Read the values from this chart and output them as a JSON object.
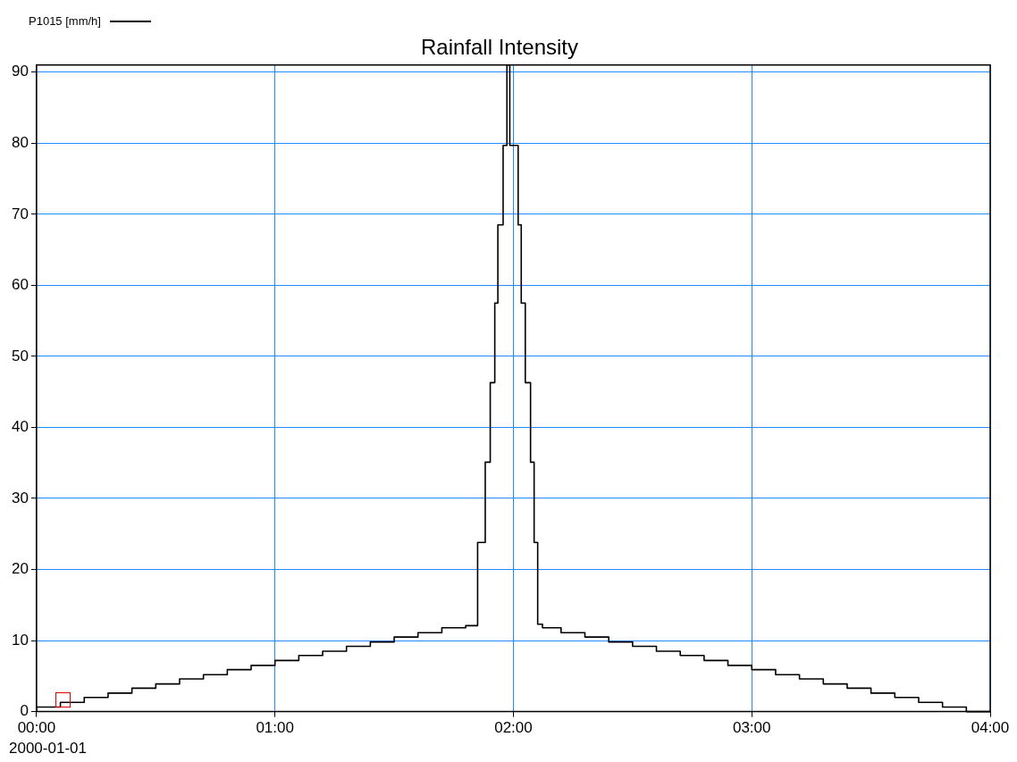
{
  "chart_data": {
    "type": "step",
    "title": "Rainfall Intensity",
    "x": [
      0,
      0.1,
      0.2,
      0.3,
      0.4,
      0.5,
      0.6,
      0.7,
      0.8,
      0.9,
      1.0,
      1.1,
      1.2,
      1.3,
      1.4,
      1.5,
      1.6,
      1.7,
      1.8,
      1.85,
      1.882,
      1.903,
      1.922,
      1.935,
      1.957,
      1.973,
      1.985,
      2.02,
      2.033,
      2.05,
      2.072,
      2.087,
      2.102,
      2.122,
      2.2,
      2.3,
      2.4,
      2.5,
      2.6,
      2.7,
      2.8,
      2.9,
      3.0,
      3.1,
      3.2,
      3.3,
      3.4,
      3.5,
      3.6,
      3.7,
      3.8,
      3.9,
      4.0
    ],
    "series": [
      {
        "name": "P1015 [mm/h]",
        "color": "#000000",
        "values": [
          0,
          0.65,
          1.3,
          2.0,
          2.6,
          3.3,
          3.9,
          4.6,
          5.2,
          5.9,
          6.5,
          7.2,
          7.9,
          8.5,
          9.2,
          9.8,
          10.5,
          11.1,
          11.8,
          12.1,
          23.8,
          35.1,
          46.3,
          57.5,
          68.5,
          79.7,
          91,
          79.7,
          68.5,
          57.5,
          46.3,
          35.1,
          23.8,
          12.3,
          11.8,
          11.1,
          10.5,
          9.8,
          9.2,
          8.5,
          7.9,
          7.2,
          6.5,
          5.9,
          5.2,
          4.6,
          3.9,
          3.3,
          2.6,
          2.0,
          1.3,
          0.65,
          0
        ]
      }
    ],
    "xlim": [
      0,
      4
    ],
    "xticks": [
      {
        "value": 0,
        "label": "00:00"
      },
      {
        "value": 1,
        "label": "01:00"
      },
      {
        "value": 2,
        "label": "02:00"
      },
      {
        "value": 3,
        "label": "03:00"
      },
      {
        "value": 4,
        "label": "04:00"
      }
    ],
    "ylim": [
      0,
      91
    ],
    "yticks": [
      0,
      10,
      20,
      30,
      40,
      50,
      60,
      70,
      80,
      90
    ],
    "grid": true,
    "legend": "top left",
    "line_style": "solid",
    "marker": "none",
    "annotations": [
      "2000-01-01"
    ]
  }
}
